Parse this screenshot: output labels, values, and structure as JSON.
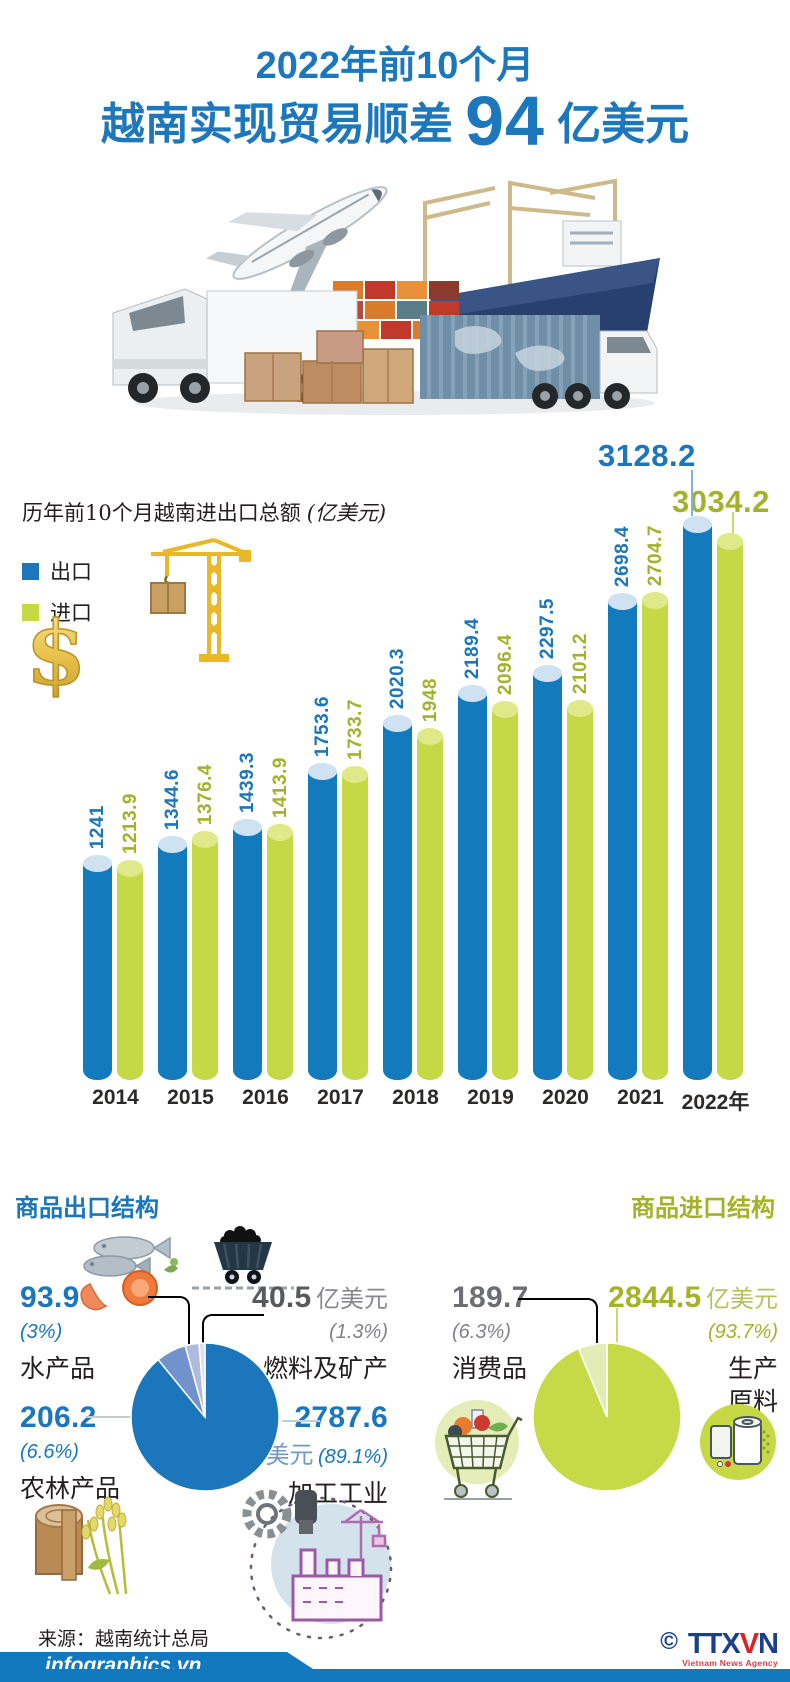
{
  "header": {
    "line1": "2022年前10个月",
    "line2_prefix": "越南实现贸易顺差",
    "line2_number": "94",
    "line2_suffix": "亿美元"
  },
  "bar_chart": {
    "title": "历年前10个月越南进出口总额",
    "unit": "(亿美元)",
    "legend": {
      "export": "出口",
      "import": "进口"
    },
    "year_suffix": "年"
  },
  "chart_data": [
    {
      "type": "bar",
      "title": "历年前10个月越南进出口总额 (亿美元)",
      "categories": [
        "2014",
        "2015",
        "2016",
        "2017",
        "2018",
        "2019",
        "2020",
        "2021",
        "2022"
      ],
      "series": [
        {
          "name": "出口",
          "color": "#147abe",
          "label_color": "#1b76bc",
          "values": [
            1241,
            1344.6,
            1439.3,
            1753.6,
            2020.3,
            2189.4,
            2297.5,
            2698.4,
            3128.2
          ]
        },
        {
          "name": "进口",
          "color": "#c5d845",
          "label_color": "#a2b32b",
          "values": [
            1213.9,
            1376.4,
            1413.9,
            1733.7,
            1948,
            2096.4,
            2101.2,
            2704.7,
            3034.2
          ]
        }
      ],
      "xlabel": "",
      "ylabel": "亿美元",
      "ylim": [
        0,
        3200
      ],
      "grid": false,
      "legend_position": "left"
    },
    {
      "type": "pie",
      "title": "商品出口结构",
      "slices": [
        {
          "label": "加工工业",
          "value": 2787.6,
          "unit": "亿美元",
          "percent": 89.1,
          "color": "#1b76bc"
        },
        {
          "label": "农林产品",
          "value": 206.2,
          "percent": 6.6,
          "color": "#7292cc"
        },
        {
          "label": "水产品",
          "value": 93.9,
          "percent": 3,
          "color": "#aebbdd"
        },
        {
          "label": "燃料及矿产",
          "value": 40.5,
          "unit": "亿美元",
          "percent": 1.3,
          "color": "#dce3ef"
        }
      ]
    },
    {
      "type": "pie",
      "title": "商品进口结构",
      "slices": [
        {
          "label": "生产原料",
          "value": 2844.5,
          "unit": "亿美元",
          "percent": 93.7,
          "color": "#c6d946"
        },
        {
          "label": "消费品",
          "value": 189.7,
          "percent": 6.3,
          "color": "#e3ecb4"
        }
      ]
    }
  ],
  "export_section": {
    "heading": "商品出口结构",
    "seafood": {
      "value": "93.9",
      "percent": "(3%)",
      "name": "水产品"
    },
    "fuel": {
      "value": "40.5",
      "unit": "亿美元",
      "percent": "(1.3%)",
      "name": "燃料及矿产"
    },
    "agro": {
      "value": "206.2",
      "percent": "(6.6%)",
      "name": "农林产品"
    },
    "industry": {
      "value": "2787.6",
      "unit": "亿美元",
      "percent": "(89.1%)",
      "name": "加工工业"
    }
  },
  "import_section": {
    "heading": "商品进口结构",
    "consumer": {
      "value": "189.7",
      "percent": "(6.3%)",
      "name": "消费品"
    },
    "materials": {
      "value": "2844.5",
      "unit": "亿美元",
      "percent": "(93.7%)",
      "name_line1": "生产",
      "name_line2": "原料"
    }
  },
  "footer": {
    "source": "来源：越南统计总局",
    "site": "infographics.vn",
    "copyright": "©",
    "agency_1": "TTX",
    "agency_2": "V",
    "agency_3": "N",
    "agency_name": "Vietnam News Agency"
  },
  "colors": {
    "accent_blue": "#1b76bc",
    "accent_green": "#c5d845",
    "label_olive": "#a2b32b",
    "footer_blue": "#1379bf",
    "gray_value": "#58595b"
  }
}
